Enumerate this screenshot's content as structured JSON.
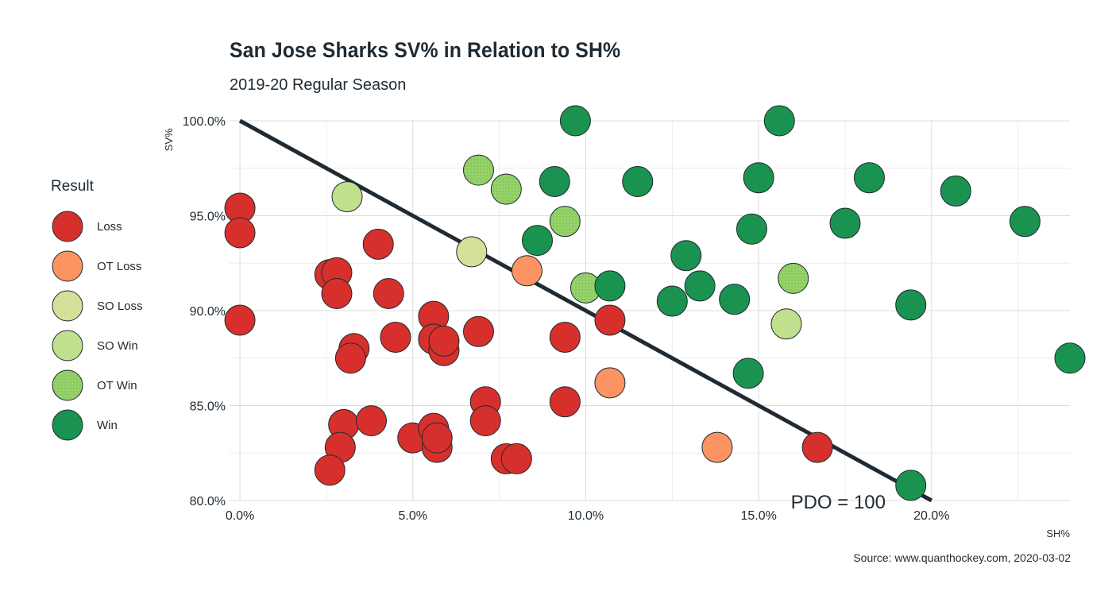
{
  "chart_data": {
    "type": "scatter",
    "title": "San Jose Sharks SV% in Relation to SH%",
    "subtitle": "2019-20 Regular Season",
    "xlabel": "SH%",
    "ylabel": "SV%",
    "xlim": [
      -0.3,
      24
    ],
    "ylim": [
      80,
      100
    ],
    "xticks": [
      0,
      5,
      10,
      15,
      20
    ],
    "xtick_labels": [
      "0.0%",
      "5.0%",
      "10.0%",
      "15.0%",
      "20.0%"
    ],
    "yticks": [
      80,
      85,
      90,
      95,
      100
    ],
    "ytick_labels": [
      "80.0%",
      "85.0%",
      "90.0%",
      "95.0%",
      "100.0%"
    ],
    "grid": true,
    "legend_title": "Result",
    "legend_position": "left",
    "categories": [
      {
        "name": "Loss",
        "color": "#d7302c"
      },
      {
        "name": "OT Loss",
        "color": "#fb9362"
      },
      {
        "name": "SO Loss",
        "color": "#d3e29a"
      },
      {
        "name": "SO Win",
        "color": "#c0e08e"
      },
      {
        "name": "OT Win",
        "color": "#95d26a"
      },
      {
        "name": "Win",
        "color": "#1a9350"
      }
    ],
    "reference_line": {
      "label": "PDO = 100",
      "from": [
        0,
        100
      ],
      "to": [
        20,
        80
      ]
    },
    "source": "Source: www.quanthockey.com, 2020-03-02",
    "points": [
      {
        "x": 0.0,
        "y": 95.4,
        "result": "Loss"
      },
      {
        "x": 0.0,
        "y": 94.1,
        "result": "Loss"
      },
      {
        "x": 0.0,
        "y": 89.5,
        "result": "Loss"
      },
      {
        "x": 2.6,
        "y": 91.9,
        "result": "Loss"
      },
      {
        "x": 2.8,
        "y": 92.0,
        "result": "Loss"
      },
      {
        "x": 2.8,
        "y": 90.9,
        "result": "Loss"
      },
      {
        "x": 3.3,
        "y": 88.0,
        "result": "Loss"
      },
      {
        "x": 3.2,
        "y": 87.5,
        "result": "Loss"
      },
      {
        "x": 4.0,
        "y": 93.5,
        "result": "Loss"
      },
      {
        "x": 4.3,
        "y": 90.9,
        "result": "Loss"
      },
      {
        "x": 4.5,
        "y": 88.6,
        "result": "Loss"
      },
      {
        "x": 5.6,
        "y": 89.7,
        "result": "Loss"
      },
      {
        "x": 5.6,
        "y": 88.5,
        "result": "Loss"
      },
      {
        "x": 5.9,
        "y": 87.9,
        "result": "Loss"
      },
      {
        "x": 5.9,
        "y": 88.4,
        "result": "Loss"
      },
      {
        "x": 6.9,
        "y": 88.9,
        "result": "Loss"
      },
      {
        "x": 7.1,
        "y": 85.2,
        "result": "Loss"
      },
      {
        "x": 7.1,
        "y": 84.2,
        "result": "Loss"
      },
      {
        "x": 9.4,
        "y": 88.6,
        "result": "Loss"
      },
      {
        "x": 9.4,
        "y": 85.2,
        "result": "Loss"
      },
      {
        "x": 10.7,
        "y": 89.5,
        "result": "Loss"
      },
      {
        "x": 16.7,
        "y": 82.8,
        "result": "Loss"
      },
      {
        "x": 3.0,
        "y": 84.0,
        "result": "Loss"
      },
      {
        "x": 3.8,
        "y": 84.2,
        "result": "Loss"
      },
      {
        "x": 2.9,
        "y": 82.8,
        "result": "Loss"
      },
      {
        "x": 2.6,
        "y": 81.6,
        "result": "Loss"
      },
      {
        "x": 5.0,
        "y": 83.3,
        "result": "Loss"
      },
      {
        "x": 5.6,
        "y": 83.8,
        "result": "Loss"
      },
      {
        "x": 5.7,
        "y": 82.8,
        "result": "Loss"
      },
      {
        "x": 5.7,
        "y": 83.3,
        "result": "Loss"
      },
      {
        "x": 7.7,
        "y": 82.2,
        "result": "Loss"
      },
      {
        "x": 8.0,
        "y": 82.2,
        "result": "Loss"
      },
      {
        "x": 8.3,
        "y": 92.1,
        "result": "OT Loss"
      },
      {
        "x": 10.7,
        "y": 86.2,
        "result": "OT Loss"
      },
      {
        "x": 13.8,
        "y": 82.8,
        "result": "OT Loss"
      },
      {
        "x": 6.7,
        "y": 93.1,
        "result": "SO Loss"
      },
      {
        "x": 3.1,
        "y": 96.0,
        "result": "SO Win"
      },
      {
        "x": 15.8,
        "y": 89.3,
        "result": "SO Win"
      },
      {
        "x": 6.9,
        "y": 97.4,
        "result": "OT Win"
      },
      {
        "x": 7.7,
        "y": 96.4,
        "result": "OT Win"
      },
      {
        "x": 9.4,
        "y": 94.7,
        "result": "OT Win"
      },
      {
        "x": 10.0,
        "y": 91.2,
        "result": "OT Win"
      },
      {
        "x": 16.0,
        "y": 91.7,
        "result": "OT Win"
      },
      {
        "x": 9.7,
        "y": 100.0,
        "result": "Win"
      },
      {
        "x": 15.6,
        "y": 100.0,
        "result": "Win"
      },
      {
        "x": 9.1,
        "y": 96.8,
        "result": "Win"
      },
      {
        "x": 11.5,
        "y": 96.8,
        "result": "Win"
      },
      {
        "x": 15.0,
        "y": 97.0,
        "result": "Win"
      },
      {
        "x": 18.2,
        "y": 97.0,
        "result": "Win"
      },
      {
        "x": 20.7,
        "y": 96.3,
        "result": "Win"
      },
      {
        "x": 8.6,
        "y": 93.7,
        "result": "Win"
      },
      {
        "x": 14.8,
        "y": 94.3,
        "result": "Win"
      },
      {
        "x": 17.5,
        "y": 94.6,
        "result": "Win"
      },
      {
        "x": 22.7,
        "y": 94.7,
        "result": "Win"
      },
      {
        "x": 12.9,
        "y": 92.9,
        "result": "Win"
      },
      {
        "x": 10.7,
        "y": 91.3,
        "result": "Win"
      },
      {
        "x": 13.3,
        "y": 91.3,
        "result": "Win"
      },
      {
        "x": 12.5,
        "y": 90.5,
        "result": "Win"
      },
      {
        "x": 14.3,
        "y": 90.6,
        "result": "Win"
      },
      {
        "x": 19.4,
        "y": 90.3,
        "result": "Win"
      },
      {
        "x": 14.7,
        "y": 86.7,
        "result": "Win"
      },
      {
        "x": 24.0,
        "y": 87.5,
        "result": "Win"
      },
      {
        "x": 19.4,
        "y": 80.8,
        "result": "Win"
      }
    ]
  }
}
